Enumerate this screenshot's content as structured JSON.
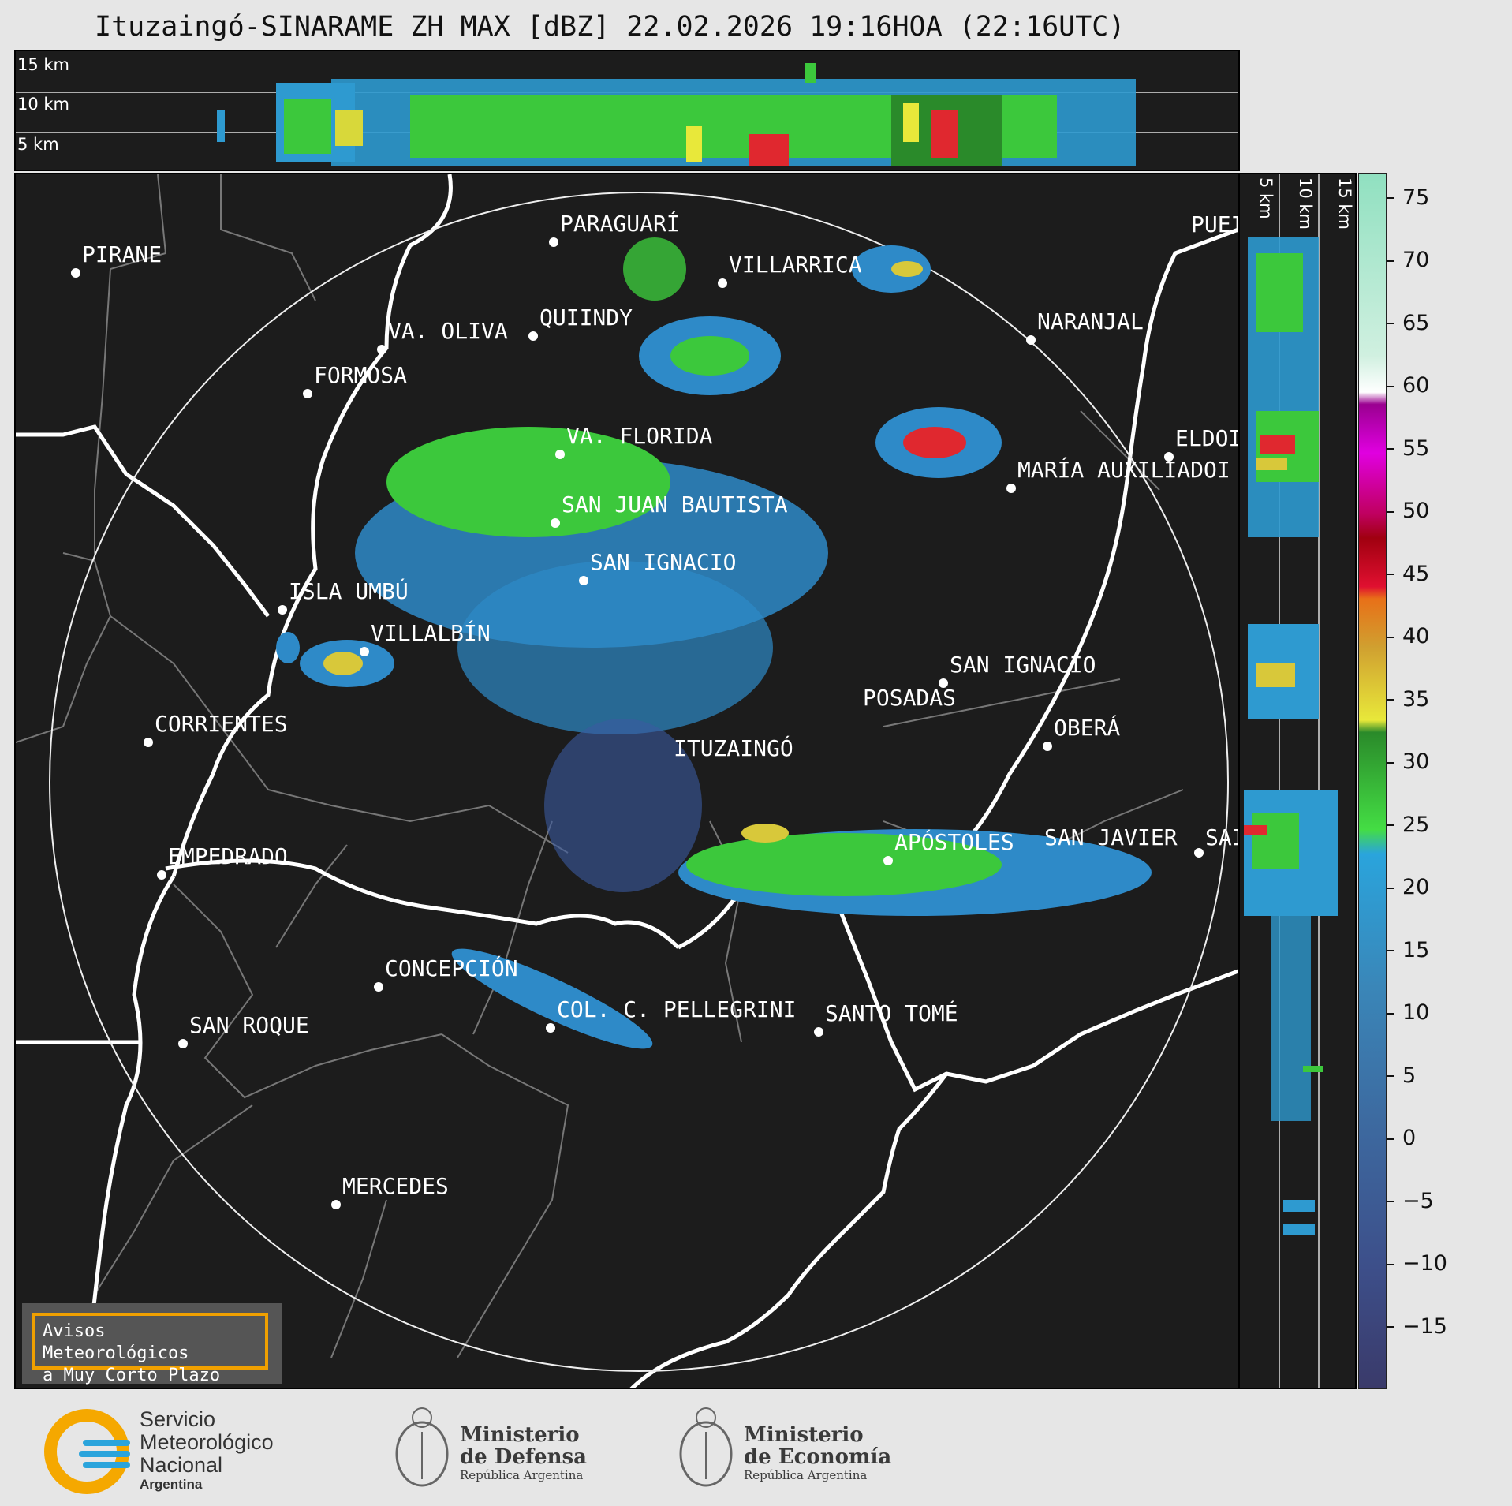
{
  "title": "Ituzaingó-SINARAME ZH MAX [dBZ] 22.02.2026 19:16HOA (22:16UTC)",
  "altitude_labels": {
    "top": [
      "15 km",
      "10 km",
      "5 km"
    ],
    "side": [
      "5 km",
      "10 km",
      "15 km"
    ]
  },
  "cities": [
    {
      "name": "PARAGUARÍ"
    },
    {
      "name": "PIRANE"
    },
    {
      "name": "VILLARRICA"
    },
    {
      "name": "QUIINDY"
    },
    {
      "name": "VA. OLIVA"
    },
    {
      "name": "NARANJAL"
    },
    {
      "name": "FORMOSA"
    },
    {
      "name": "PUEI"
    },
    {
      "name": "VA. FLORIDA"
    },
    {
      "name": "ELDOI"
    },
    {
      "name": "MARÍA AUXILIADOI"
    },
    {
      "name": "SAN JUAN BAUTISTA"
    },
    {
      "name": "SAN IGNACIO"
    },
    {
      "name": "ISLA UMBÚ"
    },
    {
      "name": "VILLALBÍN"
    },
    {
      "name": "SAN IGNACIO"
    },
    {
      "name": "POSADAS"
    },
    {
      "name": "CORRIENTES"
    },
    {
      "name": "ITUZAINGÓ"
    },
    {
      "name": "OBERÁ"
    },
    {
      "name": "APÓSTOLES"
    },
    {
      "name": "SAN JAVIER"
    },
    {
      "name": "SAI"
    },
    {
      "name": "EMPEDRADO"
    },
    {
      "name": "CONCEPCIÓN"
    },
    {
      "name": "COL. C. PELLEGRINI"
    },
    {
      "name": "SANTO TOMÉ"
    },
    {
      "name": "SAN ROQUE"
    },
    {
      "name": "MERCEDES"
    }
  ],
  "colorbar": {
    "unit": "dBZ",
    "ticks": [
      "75",
      "70",
      "65",
      "60",
      "55",
      "50",
      "45",
      "40",
      "35",
      "30",
      "25",
      "20",
      "15",
      "10",
      "5",
      "0",
      "−5",
      "−10",
      "−15"
    ],
    "range": [
      -20,
      77
    ]
  },
  "warning_box": {
    "line1": "Avisos Meteorológicos",
    "line2": "a Muy Corto Plazo"
  },
  "logos": {
    "smn": {
      "line1": "Servicio",
      "line2": "Meteorológico",
      "line3": "Nacional",
      "line4": "Argentina"
    },
    "defensa": {
      "line1": "Ministerio",
      "line2": "de Defensa",
      "line3": "República Argentina"
    },
    "economia": {
      "line1": "Ministerio",
      "line2": "de Economía",
      "line3": "República Argentina"
    }
  }
}
